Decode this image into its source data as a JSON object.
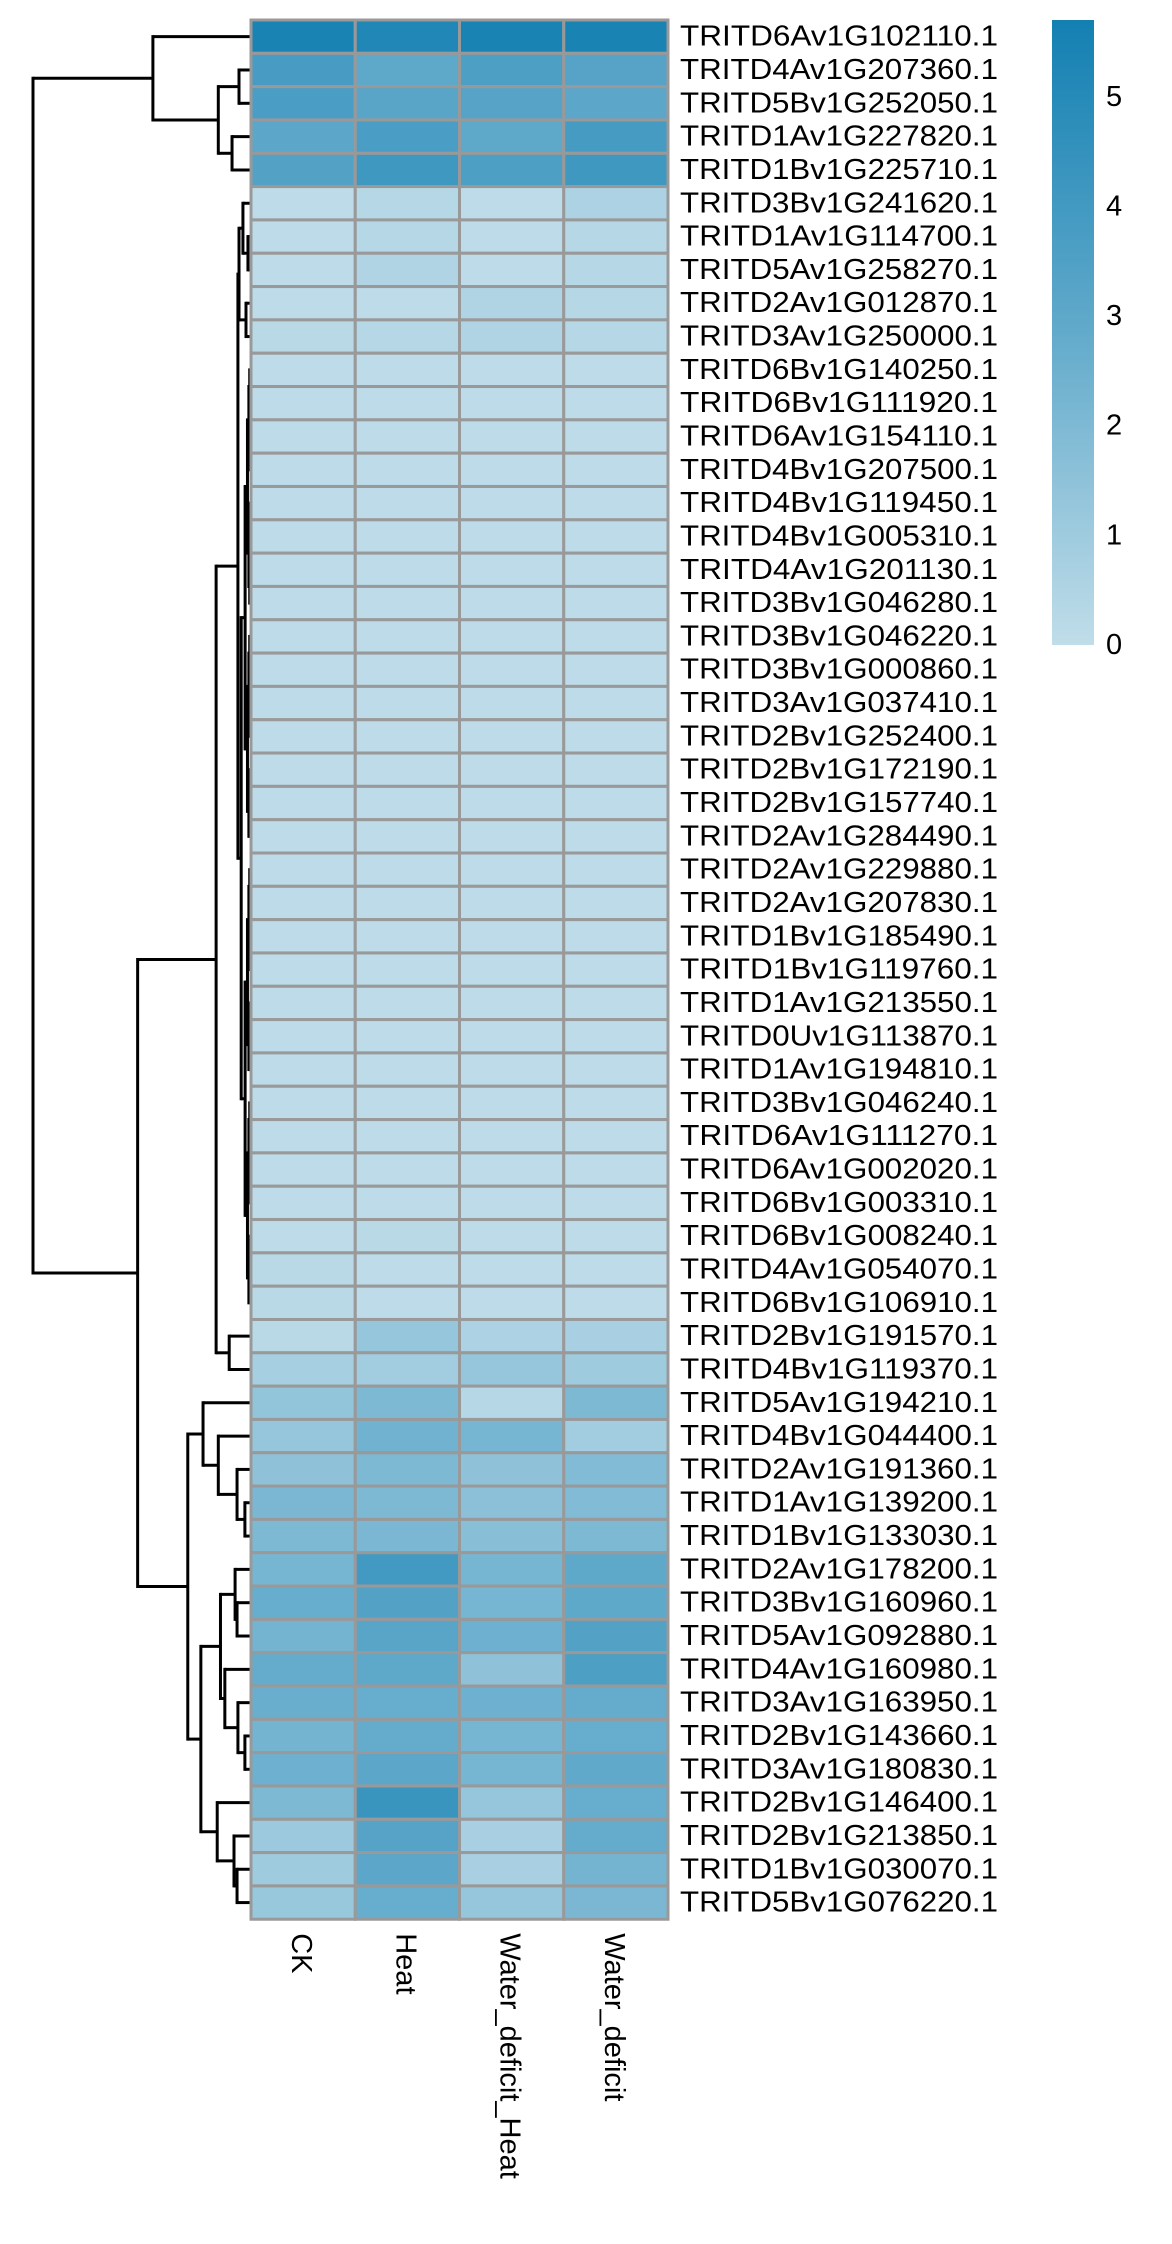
{
  "chart_data": {
    "type": "heatmap",
    "title": "",
    "columns": [
      "CK",
      "Heat",
      "Water_deficit_Heat",
      "Water_deficit"
    ],
    "rows": [
      "TRITD6Av1G102110.1",
      "TRITD4Av1G207360.1",
      "TRITD5Bv1G252050.1",
      "TRITD1Av1G227820.1",
      "TRITD1Bv1G225710.1",
      "TRITD3Bv1G241620.1",
      "TRITD1Av1G114700.1",
      "TRITD5Av1G258270.1",
      "TRITD2Av1G012870.1",
      "TRITD3Av1G250000.1",
      "TRITD6Bv1G140250.1",
      "TRITD6Bv1G111920.1",
      "TRITD6Av1G154110.1",
      "TRITD4Bv1G207500.1",
      "TRITD4Bv1G119450.1",
      "TRITD4Bv1G005310.1",
      "TRITD4Av1G201130.1",
      "TRITD3Bv1G046280.1",
      "TRITD3Bv1G046220.1",
      "TRITD3Bv1G000860.1",
      "TRITD3Av1G037410.1",
      "TRITD2Bv1G252400.1",
      "TRITD2Bv1G172190.1",
      "TRITD2Bv1G157740.1",
      "TRITD2Av1G284490.1",
      "TRITD2Av1G229880.1",
      "TRITD2Av1G207830.1",
      "TRITD1Bv1G185490.1",
      "TRITD1Bv1G119760.1",
      "TRITD1Av1G213550.1",
      "TRITD0Uv1G113870.1",
      "TRITD1Av1G194810.1",
      "TRITD3Bv1G046240.1",
      "TRITD6Av1G111270.1",
      "TRITD6Av1G002020.1",
      "TRITD6Bv1G003310.1",
      "TRITD6Bv1G008240.1",
      "TRITD4Av1G054070.1",
      "TRITD6Bv1G106910.1",
      "TRITD2Bv1G191570.1",
      "TRITD4Bv1G119370.1",
      "TRITD5Av1G194210.1",
      "TRITD4Bv1G044400.1",
      "TRITD2Av1G191360.1",
      "TRITD1Av1G139200.1",
      "TRITD1Bv1G133030.1",
      "TRITD2Av1G178200.1",
      "TRITD3Bv1G160960.1",
      "TRITD5Av1G092880.1",
      "TRITD4Av1G160980.1",
      "TRITD3Av1G163950.1",
      "TRITD2Bv1G143660.1",
      "TRITD3Av1G180830.1",
      "TRITD2Bv1G146400.1",
      "TRITD2Bv1G213850.1",
      "TRITD1Bv1G030070.1",
      "TRITD5Bv1G076220.1"
    ],
    "values": [
      [
        5.5,
        5.2,
        5.5,
        5.5
      ],
      [
        3.8,
        3.0,
        3.6,
        3.3
      ],
      [
        3.7,
        3.2,
        3.3,
        3.1
      ],
      [
        3.1,
        3.7,
        3.0,
        3.9
      ],
      [
        3.4,
        4.1,
        3.6,
        4.1
      ],
      [
        0.1,
        0.3,
        0.1,
        0.6
      ],
      [
        0.1,
        0.3,
        0.1,
        0.3
      ],
      [
        0.1,
        0.5,
        0.1,
        0.3
      ],
      [
        0.1,
        0.1,
        0.5,
        0.3
      ],
      [
        0.2,
        0.3,
        0.5,
        0.3
      ],
      [
        0.1,
        0.1,
        0.1,
        0.1
      ],
      [
        0.1,
        0.1,
        0.1,
        0.1
      ],
      [
        0.1,
        0.1,
        0.1,
        0.1
      ],
      [
        0.1,
        0.1,
        0.1,
        0.1
      ],
      [
        0.1,
        0.1,
        0.1,
        0.1
      ],
      [
        0.1,
        0.1,
        0.1,
        0.1
      ],
      [
        0.1,
        0.1,
        0.1,
        0.1
      ],
      [
        0.1,
        0.1,
        0.1,
        0.1
      ],
      [
        0.1,
        0.1,
        0.1,
        0.1
      ],
      [
        0.1,
        0.1,
        0.1,
        0.1
      ],
      [
        0.1,
        0.1,
        0.1,
        0.1
      ],
      [
        0.1,
        0.1,
        0.1,
        0.1
      ],
      [
        0.1,
        0.1,
        0.1,
        0.1
      ],
      [
        0.1,
        0.1,
        0.1,
        0.1
      ],
      [
        0.1,
        0.1,
        0.1,
        0.1
      ],
      [
        0.1,
        0.1,
        0.1,
        0.1
      ],
      [
        0.1,
        0.1,
        0.1,
        0.1
      ],
      [
        0.1,
        0.1,
        0.1,
        0.1
      ],
      [
        0.1,
        0.1,
        0.1,
        0.1
      ],
      [
        0.1,
        0.1,
        0.1,
        0.1
      ],
      [
        0.1,
        0.1,
        0.1,
        0.1
      ],
      [
        0.1,
        0.1,
        0.1,
        0.1
      ],
      [
        0.1,
        0.1,
        0.1,
        0.1
      ],
      [
        0.1,
        0.1,
        0.1,
        0.1
      ],
      [
        0.1,
        0.1,
        0.1,
        0.1
      ],
      [
        0.1,
        0.1,
        0.1,
        0.1
      ],
      [
        0.1,
        0.2,
        0.1,
        0.1
      ],
      [
        0.2,
        0.1,
        0.1,
        0.1
      ],
      [
        0.2,
        0.1,
        0.1,
        0.1
      ],
      [
        0.2,
        1.3,
        0.6,
        0.7
      ],
      [
        0.8,
        0.9,
        1.3,
        1.0
      ],
      [
        1.4,
        2.0,
        0.3,
        2.0
      ],
      [
        1.3,
        2.4,
        2.2,
        0.9
      ],
      [
        1.5,
        2.0,
        1.5,
        1.9
      ],
      [
        2.1,
        2.0,
        1.6,
        1.9
      ],
      [
        2.0,
        2.1,
        1.7,
        2.0
      ],
      [
        2.2,
        4.0,
        2.2,
        3.0
      ],
      [
        2.7,
        3.4,
        2.2,
        3.0
      ],
      [
        2.3,
        3.2,
        2.5,
        3.4
      ],
      [
        2.8,
        3.0,
        1.5,
        3.6
      ],
      [
        2.6,
        2.7,
        2.5,
        2.8
      ],
      [
        2.3,
        2.8,
        2.2,
        2.7
      ],
      [
        2.5,
        3.1,
        2.2,
        2.9
      ],
      [
        2.0,
        4.3,
        1.3,
        2.7
      ],
      [
        1.1,
        3.3,
        0.7,
        2.8
      ],
      [
        1.0,
        3.1,
        0.7,
        2.3
      ],
      [
        1.2,
        2.7,
        1.3,
        2.1
      ]
    ],
    "color_scale": {
      "min": 0,
      "max": 5.7,
      "colors": [
        "#c0dde9",
        "#62aacb",
        "#1380b2"
      ]
    },
    "legend": {
      "placement": "right",
      "ticks": [
        "0",
        "1",
        "2",
        "3",
        "4",
        "5"
      ]
    },
    "cell_border_color": "#999999",
    "row_dendrogram": {
      "h": 10,
      "c": [
        {
          "h": 4.5,
          "c": [
            1,
            {
              "h": 1.5,
              "c": [
                {
                  "h": 0.55,
                  "c": [
                    2,
                    3
                  ]
                },
                {
                  "h": 0.87,
                  "c": [
                    4,
                    5
                  ]
                }
              ]
            }
          ]
        },
        {
          "h": 5.2,
          "c": [
            {
              "h": 1.6,
              "c": [
                {
                  "h": 0.6,
                  "c": [
                    {
                      "h": 0.55,
                      "c": [
                        {
                          "h": 0.37,
                          "c": [
                            6,
                            {
                              "h": 0.14,
                              "c": [
                                7,
                                8
                              ]
                            }
                          ]
                        },
                        {
                          "h": 0.23,
                          "c": [
                            9,
                            10
                          ]
                        }
                      ]
                    },
                    {
                      "h": 0.45,
                      "flat": [
                        11,
                        12,
                        13,
                        14,
                        15,
                        16,
                        17,
                        18,
                        19,
                        20,
                        21,
                        22,
                        23,
                        24,
                        25,
                        26,
                        27,
                        28,
                        29,
                        30,
                        31,
                        32,
                        33,
                        34,
                        35,
                        36,
                        37,
                        38,
                        39
                      ]
                    }
                  ]
                },
                {
                  "h": 1.0,
                  "c": [
                    40,
                    41
                  ]
                }
              ]
            },
            {
              "h": 2.9,
              "c": [
                {
                  "h": 2.2,
                  "c": [
                    42,
                    {
                      "h": 1.5,
                      "c": [
                        43,
                        {
                          "h": 0.64,
                          "c": [
                            44,
                            {
                              "h": 0.28,
                              "c": [
                                45,
                                46
                              ]
                            }
                          ]
                        }
                      ]
                    }
                  ]
                },
                {
                  "h": 2.3,
                  "c": [
                    {
                      "h": 1.4,
                      "c": [
                        {
                          "h": 0.73,
                          "c": [
                            47,
                            {
                              "h": 0.64,
                              "c": [
                                48,
                                49
                              ]
                            }
                          ]
                        },
                        {
                          "h": 1.2,
                          "c": [
                            50,
                            {
                              "h": 0.6,
                              "c": [
                                51,
                                {
                                  "h": 0.28,
                                  "c": [
                                    52,
                                    53
                                  ]
                                }
                              ]
                            }
                          ]
                        }
                      ]
                    },
                    {
                      "h": 1.55,
                      "c": [
                        54,
                        {
                          "h": 0.78,
                          "c": [
                            55,
                            {
                              "h": 0.64,
                              "c": [
                                56,
                                57
                              ]
                            }
                          ]
                        }
                      ]
                    }
                  ]
                }
              ]
            }
          ]
        }
      ]
    }
  }
}
